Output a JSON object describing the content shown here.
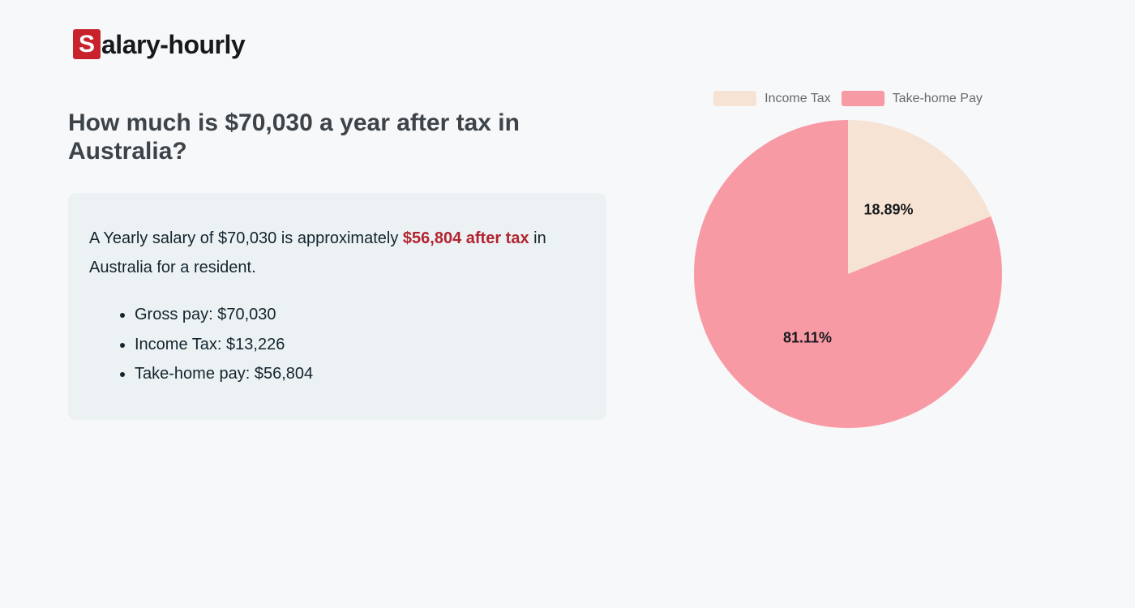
{
  "page": {
    "background_color": "#f7f8fa"
  },
  "logo": {
    "badge_letter": "S",
    "badge_color": "#c8232c",
    "text_rest": "alary-hourly"
  },
  "heading": {
    "text": "How much is $70,030 a year after tax in Australia?"
  },
  "summary": {
    "box_color": "#ecf2f3",
    "text_before_highlight": "A Yearly salary of $70,030 is approximately ",
    "highlight": "$56,804 after tax",
    "highlight_color": "#b22431",
    "text_after_highlight": " in Australia for a resident.",
    "bullets": [
      "Gross pay: $70,030",
      "Income Tax: $13,226",
      "Take-home pay: $56,804"
    ]
  },
  "chart_data": {
    "type": "pie",
    "title": "",
    "legend_position": "top",
    "start_angle_deg": 0,
    "direction": "clockwise",
    "slices": [
      {
        "label": "Income Tax",
        "value_dollars": 13226,
        "percent": 18.89,
        "percent_label": "18.89%",
        "color": "#f7e3d4"
      },
      {
        "label": "Take-home Pay",
        "value_dollars": 56804,
        "percent": 81.11,
        "percent_label": "81.11%",
        "color": "#f89aa4"
      }
    ]
  }
}
